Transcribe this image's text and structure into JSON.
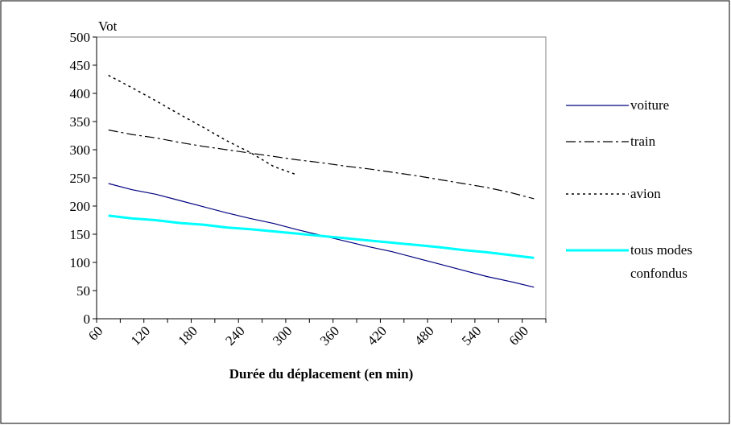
{
  "chart_data": {
    "type": "line",
    "y_label": "Vot",
    "x_label": "Durée du déplacement (en min)",
    "categories": [
      "60",
      null,
      "120",
      null,
      "180",
      null,
      "240",
      null,
      "300",
      null,
      "360",
      null,
      "420",
      null,
      "480",
      null,
      "540",
      null,
      "600"
    ],
    "series": [
      {
        "name": "voiture",
        "color": "#000080",
        "dash": "none",
        "width": 1.2,
        "values": [
          240,
          229,
          221,
          210,
          199,
          188,
          178,
          169,
          158,
          148,
          138,
          128,
          119,
          108,
          97,
          86,
          75,
          66,
          56
        ]
      },
      {
        "name": "train",
        "color": "#000000",
        "dash": "12 4 3 4",
        "width": 1.2,
        "values": [
          335,
          327,
          321,
          313,
          306,
          300,
          294,
          288,
          282,
          277,
          271,
          266,
          260,
          254,
          247,
          240,
          233,
          224,
          213
        ]
      },
      {
        "name": "avion",
        "color": "#000000",
        "dash": "3 4",
        "width": 1.5,
        "values": [
          432,
          410,
          387,
          363,
          340,
          316,
          295,
          270,
          255,
          null,
          null,
          null,
          null,
          null,
          null,
          null,
          null,
          null,
          null
        ]
      },
      {
        "name": "tous modes confondus",
        "color": "#00ffff",
        "dash": "none",
        "width": 3,
        "values": [
          183,
          178,
          175,
          170,
          167,
          162,
          159,
          155,
          151,
          147,
          143,
          139,
          135,
          131,
          127,
          122,
          118,
          113,
          108
        ]
      }
    ],
    "ylim": [
      0,
      500
    ],
    "yticks": [
      0,
      50,
      100,
      150,
      200,
      250,
      300,
      350,
      400,
      450,
      500
    ]
  }
}
